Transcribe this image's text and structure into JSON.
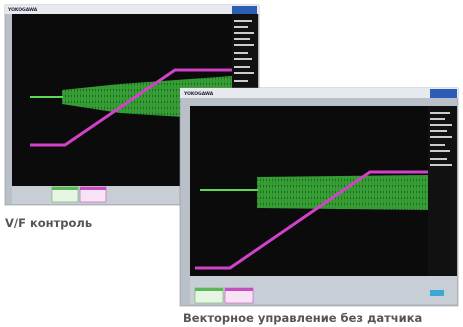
{
  "screens": [
    {
      "brand": "YOKOGAWA",
      "caption": "V/F контроль"
    },
    {
      "brand": "YOKOGAWA",
      "caption": "Векторное управление без датчика"
    }
  ]
}
